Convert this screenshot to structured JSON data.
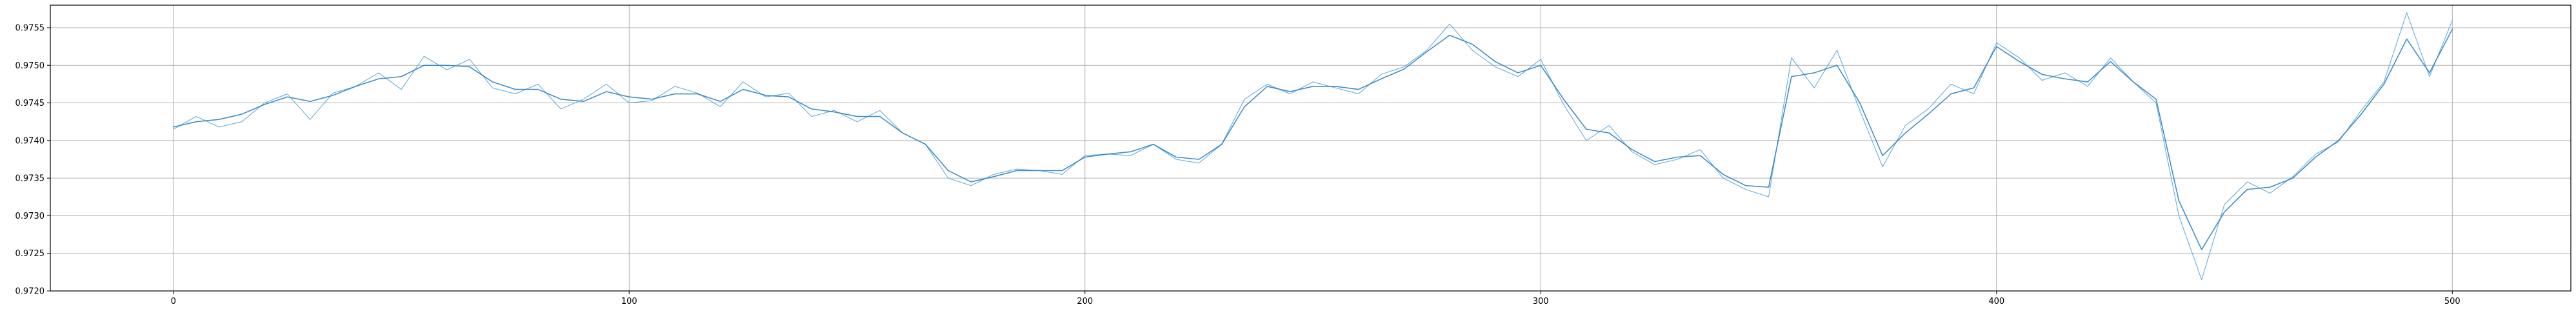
{
  "chart_data": {
    "type": "line",
    "title": "",
    "xlabel": "",
    "ylabel": "",
    "xlim": [
      -27,
      526
    ],
    "ylim": [
      0.972,
      0.9758
    ],
    "grid": true,
    "x_ticks": [
      0,
      100,
      200,
      300,
      400,
      500
    ],
    "x_tick_labels": [
      "0",
      "100",
      "200",
      "300",
      "400",
      "500"
    ],
    "y_ticks": [
      0.972,
      0.9725,
      0.973,
      0.9735,
      0.974,
      0.9745,
      0.975,
      0.9755
    ],
    "y_tick_labels": [
      "0.9720",
      "0.9725",
      "0.9730",
      "0.9735",
      "0.9740",
      "0.9745",
      "0.9750",
      "0.9755"
    ],
    "series": [
      {
        "role": "raw",
        "color": "#5fa8dc",
        "x": [
          0,
          5,
          10,
          15,
          20,
          25,
          30,
          35,
          40,
          45,
          50,
          55,
          60,
          65,
          70,
          75,
          80,
          85,
          90,
          95,
          100,
          105,
          110,
          115,
          120,
          125,
          130,
          135,
          140,
          145,
          150,
          155,
          160,
          165,
          170,
          175,
          180,
          185,
          190,
          195,
          200,
          205,
          210,
          215,
          220,
          225,
          230,
          235,
          240,
          245,
          250,
          255,
          260,
          265,
          270,
          275,
          280,
          285,
          290,
          295,
          300,
          305,
          310,
          315,
          320,
          325,
          330,
          335,
          340,
          345,
          350,
          355,
          360,
          365,
          370,
          375,
          380,
          385,
          390,
          395,
          400,
          405,
          410,
          415,
          420,
          425,
          430,
          435,
          440,
          445,
          450,
          455,
          460,
          465,
          470,
          475,
          480,
          485,
          490,
          495,
          500
        ],
        "y": [
          0.97415,
          0.97432,
          0.97418,
          0.97425,
          0.9745,
          0.97462,
          0.97428,
          0.97463,
          0.97472,
          0.9749,
          0.97468,
          0.97512,
          0.97494,
          0.97508,
          0.9747,
          0.97462,
          0.97475,
          0.97442,
          0.97455,
          0.97475,
          0.9745,
          0.97453,
          0.97472,
          0.97463,
          0.97445,
          0.97478,
          0.97458,
          0.97463,
          0.97432,
          0.9744,
          0.97425,
          0.9744,
          0.9741,
          0.97395,
          0.9735,
          0.9734,
          0.97355,
          0.97362,
          0.9736,
          0.97355,
          0.9738,
          0.97382,
          0.9738,
          0.97395,
          0.97375,
          0.9737,
          0.97395,
          0.97455,
          0.97475,
          0.97462,
          0.97478,
          0.9747,
          0.97462,
          0.97488,
          0.97498,
          0.9752,
          0.97555,
          0.9752,
          0.97498,
          0.97485,
          0.97508,
          0.97448,
          0.974,
          0.9742,
          0.97385,
          0.97368,
          0.97375,
          0.97388,
          0.9735,
          0.97335,
          0.97325,
          0.9751,
          0.9747,
          0.9752,
          0.9744,
          0.97365,
          0.9742,
          0.97442,
          0.97475,
          0.97462,
          0.9753,
          0.9751,
          0.9748,
          0.9749,
          0.97472,
          0.9751,
          0.97478,
          0.9745,
          0.973,
          0.97215,
          0.97315,
          0.97345,
          0.9733,
          0.97352,
          0.97382,
          0.97398,
          0.9744,
          0.97478,
          0.9757,
          0.97485,
          0.9756
        ]
      },
      {
        "role": "smoothed",
        "color": "#2f7fc1",
        "x": [
          0,
          5,
          10,
          15,
          20,
          25,
          30,
          35,
          40,
          45,
          50,
          55,
          60,
          65,
          70,
          75,
          80,
          85,
          90,
          95,
          100,
          105,
          110,
          115,
          120,
          125,
          130,
          135,
          140,
          145,
          150,
          155,
          160,
          165,
          170,
          175,
          180,
          185,
          190,
          195,
          200,
          205,
          210,
          215,
          220,
          225,
          230,
          235,
          240,
          245,
          250,
          255,
          260,
          265,
          270,
          275,
          280,
          285,
          290,
          295,
          300,
          305,
          310,
          315,
          320,
          325,
          330,
          335,
          340,
          345,
          350,
          355,
          360,
          365,
          370,
          375,
          380,
          385,
          390,
          395,
          400,
          405,
          410,
          415,
          420,
          425,
          430,
          435,
          440,
          445,
          450,
          455,
          460,
          465,
          470,
          475,
          480,
          485,
          490,
          495,
          500
        ],
        "y": [
          0.97418,
          0.97425,
          0.97428,
          0.97435,
          0.97448,
          0.97458,
          0.97452,
          0.9746,
          0.97472,
          0.97482,
          0.97485,
          0.975,
          0.975,
          0.97498,
          0.97478,
          0.97468,
          0.97468,
          0.97455,
          0.97452,
          0.97465,
          0.97458,
          0.97455,
          0.97462,
          0.97462,
          0.97452,
          0.97468,
          0.9746,
          0.97458,
          0.97442,
          0.97438,
          0.97432,
          0.97432,
          0.9741,
          0.97395,
          0.9736,
          0.97345,
          0.97352,
          0.9736,
          0.9736,
          0.9736,
          0.97378,
          0.97382,
          0.97385,
          0.97395,
          0.97378,
          0.97375,
          0.97395,
          0.97445,
          0.97472,
          0.97465,
          0.97472,
          0.97472,
          0.97468,
          0.97482,
          0.97495,
          0.97518,
          0.9754,
          0.97528,
          0.97505,
          0.9749,
          0.975,
          0.97455,
          0.97415,
          0.9741,
          0.97388,
          0.97372,
          0.97378,
          0.9738,
          0.97355,
          0.9734,
          0.97338,
          0.97485,
          0.9749,
          0.975,
          0.9745,
          0.9738,
          0.9741,
          0.97435,
          0.97462,
          0.9747,
          0.97525,
          0.97505,
          0.97488,
          0.97482,
          0.97478,
          0.97505,
          0.97478,
          0.97455,
          0.9732,
          0.97255,
          0.97305,
          0.97335,
          0.97338,
          0.9735,
          0.97378,
          0.974,
          0.97435,
          0.97475,
          0.97535,
          0.9749,
          0.97548
        ]
      }
    ]
  }
}
